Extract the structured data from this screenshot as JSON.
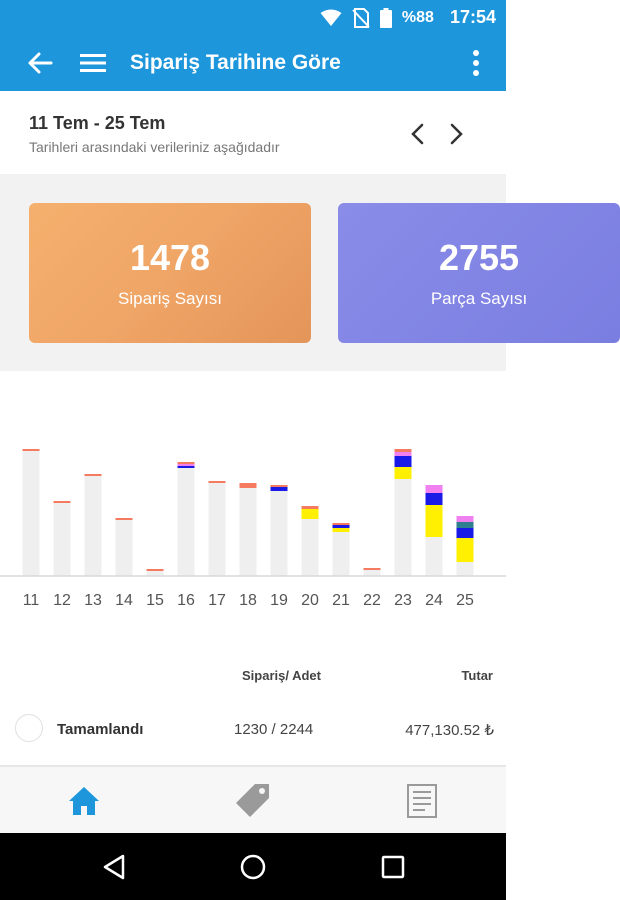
{
  "status_bar": {
    "battery": "%88",
    "time": "17:54"
  },
  "app_bar": {
    "title": "Sipariş Tarihine Göre"
  },
  "date_panel": {
    "range": "11 Tem - 25 Tem",
    "subtitle": "Tarihleri arasındaki verileriniz aşağıdadır"
  },
  "cards": [
    {
      "value": "1478",
      "label": "Sipariş Sayısı"
    },
    {
      "value": "2755",
      "label": "Parça Sayısı"
    }
  ],
  "chart_data": {
    "type": "bar",
    "stacked": true,
    "categories": [
      "11",
      "12",
      "13",
      "14",
      "15",
      "16",
      "17",
      "18",
      "19",
      "20",
      "21",
      "22",
      "23",
      "24",
      "25"
    ],
    "ylim": [
      0,
      130
    ],
    "grid": false,
    "legend": "none",
    "series": [
      {
        "color": "#efefef",
        "values": [
          125,
          73,
          100,
          56,
          5,
          108,
          93,
          88,
          85,
          57,
          44,
          6,
          97,
          39,
          14
        ]
      },
      {
        "color": "#ffef00",
        "values": [
          0,
          0,
          0,
          0,
          0,
          0,
          0,
          0,
          0,
          10,
          4,
          0,
          12,
          32,
          24
        ]
      },
      {
        "color": "#1a1ae6",
        "values": [
          0,
          0,
          0,
          0,
          0,
          2,
          0,
          0,
          4,
          0,
          3,
          0,
          11,
          12,
          10
        ]
      },
      {
        "color": "#2e7f8f",
        "values": [
          0,
          0,
          0,
          0,
          0,
          0,
          0,
          0,
          0,
          0,
          0,
          0,
          0,
          0,
          6
        ]
      },
      {
        "color": "#f080f0",
        "values": [
          0,
          0,
          0,
          0,
          0,
          2,
          0,
          0,
          0,
          0,
          0,
          0,
          4,
          8,
          6
        ]
      },
      {
        "color": "#f47a60",
        "values": [
          2,
          2,
          2,
          2,
          2,
          2,
          2,
          5,
          2,
          3,
          2,
          2,
          3,
          0,
          0
        ]
      }
    ]
  },
  "table": {
    "col_count": "Sipariş/ Adet",
    "col_amount": "Tutar",
    "rows": [
      {
        "label": "Tamamlandı",
        "count": "1230 / 2244",
        "amount": "477,130.52 ₺"
      }
    ]
  },
  "bottom_nav": {
    "items": [
      {
        "icon": "home-icon",
        "color": "#1e96dc"
      },
      {
        "icon": "tag-icon",
        "color": "#9a9a9a"
      },
      {
        "icon": "document-icon",
        "color": "#9a9a9a"
      }
    ]
  }
}
